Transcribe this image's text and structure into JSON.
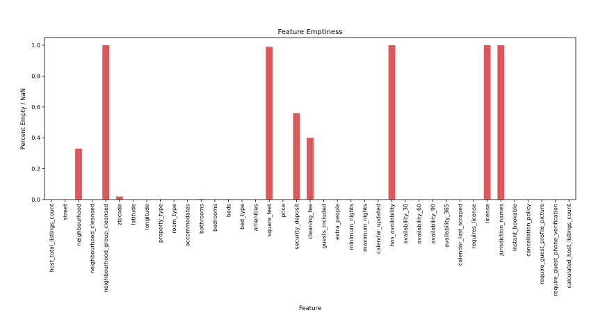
{
  "chart_data": {
    "type": "bar",
    "title": "Feature Emptiness",
    "xlabel": "Feature",
    "ylabel": "Percent Empty / NaN",
    "ylim": [
      0,
      1.05
    ],
    "yticks": [
      "0.0",
      "0.2",
      "0.4",
      "0.6",
      "0.8",
      "1.0"
    ],
    "bar_color": "#e15759",
    "grid": false,
    "categories": [
      "host_total_listings_count",
      "street",
      "neighbourhood",
      "neighbourhood_cleansed",
      "neighbourhood_group_cleansed",
      "zipcode",
      "latitude",
      "longitude",
      "property_type",
      "room_type",
      "accommodates",
      "bathrooms",
      "bedrooms",
      "beds",
      "bed_type",
      "amenities",
      "square_feet",
      "price",
      "security_deposit",
      "cleaning_fee",
      "guests_included",
      "extra_people",
      "minimum_nights",
      "maximum_nights",
      "calendar_updated",
      "has_availability",
      "availability_30",
      "availability_60",
      "availability_90",
      "availability_365",
      "calendar_last_scraped",
      "requires_license",
      "license",
      "jurisdiction_names",
      "instant_bookable",
      "cancellation_policy",
      "require_guest_profile_picture",
      "require_guest_phone_verification",
      "calculated_host_listings_count"
    ],
    "values": [
      0.0,
      0.0,
      0.33,
      0.0,
      1.0,
      0.02,
      0.0,
      0.0,
      0.0,
      0.0,
      0.0,
      0.003,
      0.0,
      0.002,
      0.0,
      0.0,
      0.99,
      0.0,
      0.56,
      0.4,
      0.0,
      0.0,
      0.0,
      0.0,
      0.0,
      1.0,
      0.0,
      0.0,
      0.0,
      0.0,
      0.0,
      0.0,
      1.0,
      1.0,
      0.0,
      0.0,
      0.0,
      0.0,
      0.0
    ]
  }
}
